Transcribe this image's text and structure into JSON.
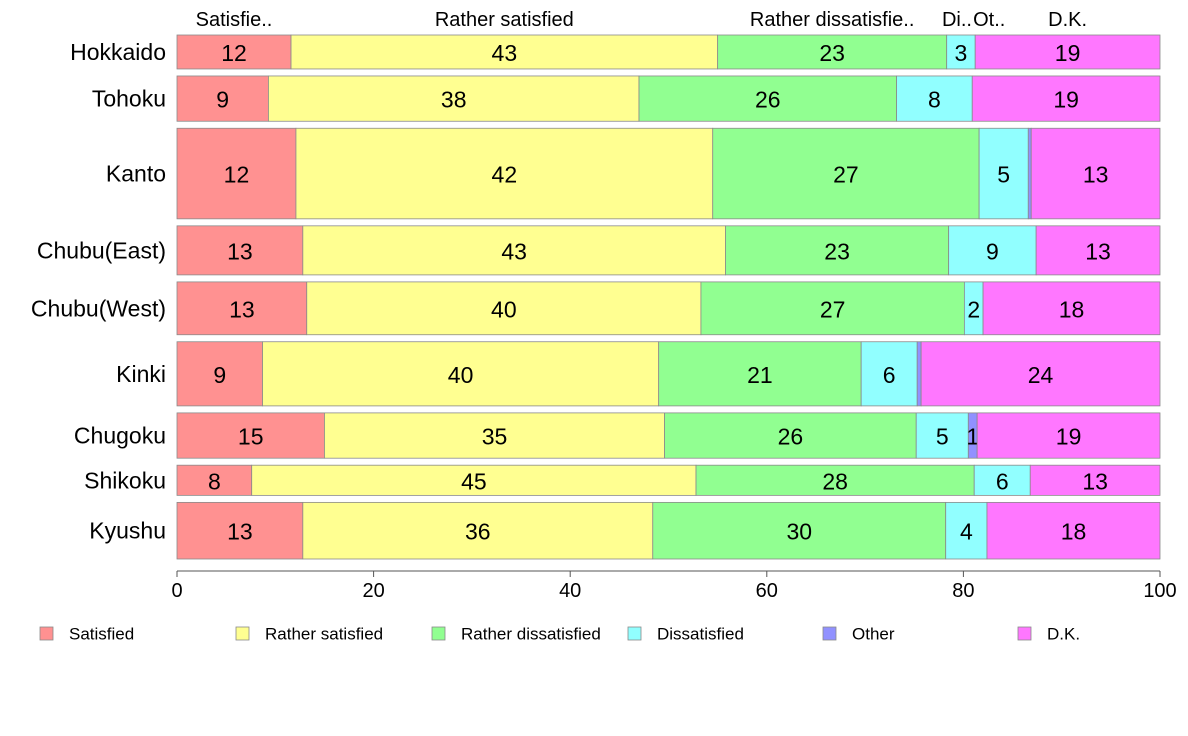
{
  "chart_data": {
    "type": "bar",
    "orientation": "horizontal",
    "stacked": true,
    "categories": [
      "Hokkaido",
      "Tohoku",
      "Kanto",
      "Chubu(East)",
      "Chubu(West)",
      "Kinki",
      "Chugoku",
      "Shikoku",
      "Kyushu"
    ],
    "category_weights": [
      0.9,
      1.2,
      2.4,
      1.3,
      1.4,
      1.7,
      1.2,
      0.8,
      1.5
    ],
    "series": [
      {
        "name": "Satisfied",
        "color": "#ff9191",
        "values": [
          11.6,
          9.3,
          12.1,
          12.8,
          13.2,
          8.7,
          15.0,
          7.6,
          12.8
        ]
      },
      {
        "name": "Rather satisfied",
        "color": "#ffff91",
        "values": [
          43.4,
          37.7,
          42.4,
          43.0,
          40.1,
          40.3,
          34.6,
          45.2,
          35.6
        ]
      },
      {
        "name": "Rather dissatisfied",
        "color": "#91ff91",
        "values": [
          23.3,
          26.2,
          27.1,
          22.7,
          26.8,
          20.6,
          25.6,
          28.3,
          29.8
        ]
      },
      {
        "name": "Dissatisfied",
        "color": "#91ffff",
        "values": [
          2.9,
          7.7,
          5.0,
          8.9,
          1.9,
          5.7,
          5.3,
          5.7,
          4.2
        ]
      },
      {
        "name": "Other",
        "color": "#9191ff",
        "values": [
          0.0,
          0.0,
          0.3,
          0.0,
          0.0,
          0.4,
          0.9,
          0.0,
          0.0
        ]
      },
      {
        "name": "D.K.",
        "color": "#ff77ff",
        "values": [
          18.8,
          19.1,
          13.1,
          12.6,
          18.0,
          24.3,
          18.6,
          13.2,
          17.6
        ]
      }
    ],
    "value_labels": [
      [
        "12",
        "43",
        "23",
        "3",
        "",
        "19"
      ],
      [
        "9",
        "38",
        "26",
        "8",
        "",
        "19"
      ],
      [
        "12",
        "42",
        "27",
        "5",
        "",
        "13"
      ],
      [
        "13",
        "43",
        "23",
        "9",
        "",
        "13"
      ],
      [
        "13",
        "40",
        "27",
        "2",
        "",
        "18"
      ],
      [
        "9",
        "40",
        "21",
        "6",
        "",
        "24"
      ],
      [
        "15",
        "35",
        "26",
        "5",
        "1",
        "19"
      ],
      [
        "8",
        "45",
        "28",
        "6",
        "",
        "13"
      ],
      [
        "13",
        "36",
        "30",
        "4",
        "",
        "18"
      ]
    ],
    "top_labels": [
      "Satisfie..",
      "Rather satisfied",
      "Rather dissatisfie..",
      "Di..",
      "Ot..",
      "D.K."
    ],
    "xlim": [
      0,
      100
    ],
    "xticks": [
      0,
      20,
      40,
      60,
      80,
      100
    ],
    "grid": false,
    "legend_position": "bottom"
  }
}
